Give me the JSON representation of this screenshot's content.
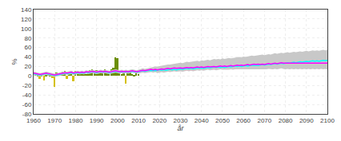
{
  "chart_data": {
    "type": "bar",
    "xlabel": "år",
    "ylabel": "%",
    "xlim": [
      1960,
      2100
    ],
    "ylim": [
      -80,
      140
    ],
    "xticks": [
      1960,
      1970,
      1980,
      1990,
      2000,
      2010,
      2020,
      2030,
      2040,
      2050,
      2060,
      2070,
      2080,
      2090,
      2100
    ],
    "yticks": [
      -80,
      -60,
      -40,
      -20,
      0,
      20,
      40,
      60,
      80,
      100,
      120,
      140
    ],
    "grid": true,
    "series": [
      {
        "type": "band",
        "color": "#c8c8c8",
        "x": [
          1960,
          1961,
          1962,
          1963,
          1964,
          1965,
          1966,
          1967,
          1968,
          1969,
          1970,
          1971,
          1972,
          1973,
          1974,
          1975,
          1976,
          1977,
          1978,
          1979,
          1980,
          1981,
          1982,
          1983,
          1984,
          1985,
          1986,
          1987,
          1988,
          1989,
          1990,
          1991,
          1992,
          1993,
          1994,
          1995,
          1996,
          1997,
          1998,
          1999,
          2000,
          2001,
          2002,
          2003,
          2004,
          2005,
          2006,
          2007,
          2008,
          2009,
          2010,
          2011,
          2012,
          2013,
          2014,
          2015,
          2016,
          2017,
          2018,
          2019,
          2020,
          2021,
          2022,
          2023,
          2024,
          2025,
          2026,
          2027,
          2028,
          2029,
          2030,
          2031,
          2032,
          2033,
          2034,
          2035,
          2036,
          2037,
          2038,
          2039,
          2040,
          2041,
          2042,
          2043,
          2044,
          2045,
          2046,
          2047,
          2048,
          2049,
          2050,
          2051,
          2052,
          2053,
          2054,
          2055,
          2056,
          2057,
          2058,
          2059,
          2060,
          2061,
          2062,
          2063,
          2064,
          2065,
          2066,
          2067,
          2068,
          2069,
          2070,
          2071,
          2072,
          2073,
          2074,
          2075,
          2076,
          2077,
          2078,
          2079,
          2080,
          2081,
          2082,
          2083,
          2084,
          2085,
          2086,
          2087,
          2088,
          2089,
          2090,
          2091,
          2092,
          2093,
          2094,
          2095,
          2096,
          2097,
          2098,
          2099,
          2100
        ],
        "upper": [
          9,
          8,
          7,
          6,
          7,
          8,
          9,
          8,
          7,
          6,
          5,
          6,
          7,
          8,
          9,
          10,
          9,
          10,
          11,
          9,
          10,
          11,
          10,
          11,
          10,
          12,
          11,
          12,
          13,
          12,
          11,
          12,
          13,
          12,
          13,
          12,
          11,
          12,
          13,
          14,
          13,
          12,
          13,
          12,
          13,
          12,
          13,
          14,
          13,
          12,
          13,
          14,
          16,
          15,
          16,
          18,
          19,
          19,
          20,
          20,
          21,
          22,
          22,
          23,
          24,
          24,
          25,
          26,
          26,
          27,
          28,
          27,
          29,
          30,
          29,
          30,
          30,
          31,
          32,
          31,
          33,
          32,
          33,
          34,
          33,
          35,
          36,
          35,
          36,
          35,
          37,
          36,
          37,
          38,
          37,
          38,
          39,
          39,
          40,
          39,
          41,
          40,
          41,
          42,
          43,
          42,
          43,
          43,
          44,
          45,
          44,
          45,
          46,
          45,
          47,
          48,
          47,
          48,
          49,
          48,
          49,
          50,
          49,
          50,
          51,
          50,
          51,
          52,
          51,
          52,
          53,
          52,
          53,
          54,
          53,
          54,
          53,
          54,
          55,
          54,
          55
        ],
        "lower": [
          2,
          1,
          0,
          -1,
          0,
          1,
          2,
          1,
          0,
          -1,
          -2,
          -1,
          0,
          1,
          2,
          3,
          2,
          3,
          4,
          2,
          3,
          4,
          3,
          4,
          3,
          5,
          4,
          5,
          6,
          5,
          4,
          5,
          6,
          5,
          6,
          5,
          4,
          5,
          6,
          7,
          6,
          5,
          6,
          5,
          6,
          5,
          6,
          7,
          6,
          5,
          5,
          6,
          7,
          6,
          7,
          7,
          8,
          7,
          8,
          6,
          7,
          8,
          7,
          8,
          9,
          8,
          9,
          10,
          9,
          10,
          10,
          9,
          10,
          11,
          10,
          11,
          10,
          11,
          12,
          11,
          12,
          11,
          12,
          13,
          12,
          13,
          13,
          12,
          13,
          14,
          13,
          13,
          12,
          13,
          14,
          13,
          14,
          14,
          13,
          14,
          13,
          14,
          13,
          14,
          13,
          14,
          14,
          13,
          14,
          14,
          13,
          14,
          15,
          14,
          14,
          15,
          14,
          15,
          16,
          15,
          14,
          15,
          14,
          15,
          14,
          15,
          14,
          15,
          14,
          15,
          14,
          15,
          14,
          15,
          14,
          15,
          14,
          15,
          14,
          15,
          13
        ]
      },
      {
        "type": "bar",
        "x": [
          1961,
          1962,
          1963,
          1964,
          1965,
          1966,
          1967,
          1968,
          1969,
          1970,
          1971,
          1972,
          1973,
          1974,
          1975,
          1976,
          1977,
          1978,
          1979,
          1980,
          1981,
          1982,
          1983,
          1984,
          1985,
          1986,
          1987,
          1988,
          1989,
          1990,
          1991,
          1992,
          1993,
          1994,
          1995,
          1996,
          1997,
          1998,
          1999,
          2000,
          2001,
          2002,
          2003,
          2004,
          2005,
          2006,
          2007,
          2008,
          2009,
          2010
        ],
        "values": [
          4,
          2,
          -6,
          1,
          -9,
          3,
          5,
          2,
          -4,
          -23,
          7,
          4,
          6,
          9,
          11,
          -6,
          7,
          9,
          -11,
          11,
          7,
          9,
          11,
          7,
          4,
          11,
          12,
          14,
          9,
          12,
          9,
          11,
          7,
          14,
          11,
          9,
          14,
          17,
          40,
          38,
          7,
          4,
          11,
          -16,
          9,
          7,
          4,
          2,
          6,
          4
        ],
        "colors": [
          "#6b8e00",
          "#6b8e00",
          "#d4c000",
          "#6b8e00",
          "#d4c000",
          "#6b8e00",
          "#6b8e00",
          "#6b8e00",
          "#d4c000",
          "#d4c000",
          "#6b8e00",
          "#6b8e00",
          "#6b8e00",
          "#6b8e00",
          "#6b8e00",
          "#d4c000",
          "#6b8e00",
          "#6b8e00",
          "#d4c000",
          "#6b8e00",
          "#6b8e00",
          "#6b8e00",
          "#6b8e00",
          "#6b8e00",
          "#6b8e00",
          "#6b8e00",
          "#6b8e00",
          "#6b8e00",
          "#6b8e00",
          "#6b8e00",
          "#6b8e00",
          "#6b8e00",
          "#6b8e00",
          "#6b8e00",
          "#6b8e00",
          "#6b8e00",
          "#6b8e00",
          "#6b8e00",
          "#6b8e00",
          "#6b8e00",
          "#6b8e00",
          "#6b8e00",
          "#6b8e00",
          "#d4c000",
          "#6b8e00",
          "#6b8e00",
          "#6b8e00",
          "#6b8e00",
          "#6b8e00",
          "#6b8e00"
        ]
      },
      {
        "type": "line",
        "color": "#00ffff",
        "x": [
          1960,
          1961,
          1962,
          1963,
          1964,
          1965,
          1966,
          1967,
          1968,
          1969,
          1970,
          1971,
          1972,
          1973,
          1974,
          1975,
          1976,
          1977,
          1978,
          1979,
          1980,
          1981,
          1982,
          1983,
          1984,
          1985,
          1986,
          1987,
          1988,
          1989,
          1990,
          1991,
          1992,
          1993,
          1994,
          1995,
          1996,
          1997,
          1998,
          1999,
          2000,
          2001,
          2002,
          2003,
          2004,
          2005,
          2006,
          2007,
          2008,
          2009,
          2010,
          2011,
          2012,
          2013,
          2014,
          2015,
          2016,
          2017,
          2018,
          2019,
          2020,
          2021,
          2022,
          2023,
          2024,
          2025,
          2026,
          2027,
          2028,
          2029,
          2030,
          2031,
          2032,
          2033,
          2034,
          2035,
          2036,
          2037,
          2038,
          2039,
          2040,
          2041,
          2042,
          2043,
          2044,
          2045,
          2046,
          2047,
          2048,
          2049,
          2050,
          2051,
          2052,
          2053,
          2054,
          2055,
          2056,
          2057,
          2058,
          2059,
          2060,
          2061,
          2062,
          2063,
          2064,
          2065,
          2066,
          2067,
          2068,
          2069,
          2070,
          2071,
          2072,
          2073,
          2074,
          2075,
          2076,
          2077,
          2078,
          2079,
          2080,
          2081,
          2082,
          2083,
          2084,
          2085,
          2086,
          2087,
          2088,
          2089,
          2090,
          2091,
          2092,
          2093,
          2094,
          2095,
          2096,
          2097,
          2098,
          2099,
          2100
        ],
        "values": [
          5,
          4,
          3,
          2,
          3,
          4,
          5,
          4,
          3,
          2,
          1,
          2,
          3,
          4,
          5,
          6,
          5,
          6,
          7,
          5,
          6,
          7,
          6,
          7,
          6,
          8,
          7,
          8,
          9,
          8,
          7,
          8,
          9,
          8,
          9,
          8,
          7,
          8,
          9,
          10,
          9,
          8,
          9,
          8,
          9,
          8,
          9,
          10,
          9,
          8,
          9,
          10,
          11,
          10,
          11,
          12,
          11,
          12,
          11,
          12,
          13,
          12,
          13,
          12,
          13,
          14,
          13,
          14,
          13,
          14,
          15,
          14,
          15,
          16,
          15,
          16,
          15,
          16,
          17,
          16,
          17,
          16,
          17,
          18,
          17,
          18,
          19,
          18,
          19,
          18,
          19,
          18,
          19,
          20,
          19,
          20,
          21,
          20,
          21,
          20,
          21,
          22,
          21,
          22,
          23,
          22,
          23,
          22,
          23,
          24,
          23,
          24,
          25,
          24,
          25,
          26,
          25,
          26,
          27,
          26,
          27,
          28,
          27,
          28,
          29,
          28,
          29,
          30,
          29,
          30,
          31,
          30,
          31,
          32,
          31,
          32,
          31,
          32,
          33,
          32,
          33
        ]
      },
      {
        "type": "line",
        "color": "#ff00ff",
        "x": [
          1960,
          1961,
          1962,
          1963,
          1964,
          1965,
          1966,
          1967,
          1968,
          1969,
          1970,
          1971,
          1972,
          1973,
          1974,
          1975,
          1976,
          1977,
          1978,
          1979,
          1980,
          1981,
          1982,
          1983,
          1984,
          1985,
          1986,
          1987,
          1988,
          1989,
          1990,
          1991,
          1992,
          1993,
          1994,
          1995,
          1996,
          1997,
          1998,
          1999,
          2000,
          2001,
          2002,
          2003,
          2004,
          2005,
          2006,
          2007,
          2008,
          2009,
          2010,
          2011,
          2012,
          2013,
          2014,
          2015,
          2016,
          2017,
          2018,
          2019,
          2020,
          2021,
          2022,
          2023,
          2024,
          2025,
          2026,
          2027,
          2028,
          2029,
          2030,
          2031,
          2032,
          2033,
          2034,
          2035,
          2036,
          2037,
          2038,
          2039,
          2040,
          2041,
          2042,
          2043,
          2044,
          2045,
          2046,
          2047,
          2048,
          2049,
          2050,
          2051,
          2052,
          2053,
          2054,
          2055,
          2056,
          2057,
          2058,
          2059,
          2060,
          2061,
          2062,
          2063,
          2064,
          2065,
          2066,
          2067,
          2068,
          2069,
          2070,
          2071,
          2072,
          2073,
          2074,
          2075,
          2076,
          2077,
          2078,
          2079,
          2080,
          2081,
          2082,
          2083,
          2084,
          2085,
          2086,
          2087,
          2088,
          2089,
          2090,
          2091,
          2092,
          2093,
          2094,
          2095,
          2096,
          2097,
          2098,
          2099,
          2100
        ],
        "values": [
          6,
          5,
          4,
          3,
          4,
          5,
          6,
          5,
          4,
          3,
          2,
          3,
          4,
          5,
          6,
          7,
          6,
          7,
          8,
          6,
          7,
          8,
          7,
          8,
          7,
          9,
          8,
          9,
          10,
          9,
          8,
          9,
          10,
          9,
          10,
          9,
          8,
          9,
          10,
          11,
          10,
          9,
          10,
          9,
          10,
          9,
          10,
          11,
          10,
          9,
          10,
          11,
          12,
          11,
          12,
          13,
          14,
          13,
          14,
          13,
          14,
          15,
          14,
          15,
          16,
          15,
          16,
          17,
          16,
          17,
          17,
          16,
          17,
          18,
          17,
          18,
          17,
          18,
          19,
          18,
          19,
          18,
          19,
          20,
          19,
          20,
          20,
          19,
          20,
          21,
          20,
          21,
          20,
          21,
          22,
          21,
          22,
          23,
          22,
          23,
          22,
          23,
          24,
          23,
          24,
          25,
          24,
          25,
          24,
          25,
          24,
          25,
          26,
          25,
          26,
          27,
          26,
          27,
          28,
          27,
          27,
          28,
          27,
          28,
          27,
          28,
          27,
          28,
          27,
          28,
          27,
          28,
          27,
          28,
          27,
          28,
          27,
          28,
          27,
          28,
          27
        ]
      }
    ]
  }
}
